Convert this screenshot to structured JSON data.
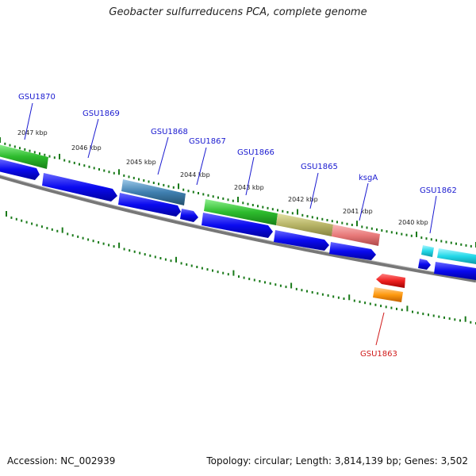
{
  "title": "Geobacter sulfurreducens PCA, complete genome",
  "footer": {
    "accession": "Accession: NC_002939",
    "summary": "Topology: circular; Length: 3,814,139 bp; Genes: 3,502"
  },
  "colors": {
    "cds_blue": "#0a0af0",
    "backbone": "#777777",
    "tick": "#1a7a1a",
    "label_blue": "#1a1ad0",
    "label_red": "#d01a1a"
  },
  "kbp_labels": [
    "2047 kbp",
    "2046 kbp",
    "2045 kbp",
    "2044 kbp",
    "2043 kbp",
    "2042 kbp",
    "2041 kbp",
    "2040 kbp"
  ],
  "genes": [
    {
      "name": "GSU1870",
      "color": "#2dbb2d"
    },
    {
      "name": "GSU1869",
      "color": "#0a0af0"
    },
    {
      "name": "GSU1868",
      "color": "#3f7fb0"
    },
    {
      "name": "GSU1867",
      "color": "#0a0af0"
    },
    {
      "name": "GSU1866",
      "color": "#2dbb2d"
    },
    {
      "name": "GSU1865",
      "color": "#b7b467"
    },
    {
      "name": "ksgA",
      "color": "#e87a7a"
    },
    {
      "name": "GSU1862",
      "color": "#22d8e8"
    },
    {
      "name": "GSU1863",
      "color": "#ee2020"
    }
  ]
}
